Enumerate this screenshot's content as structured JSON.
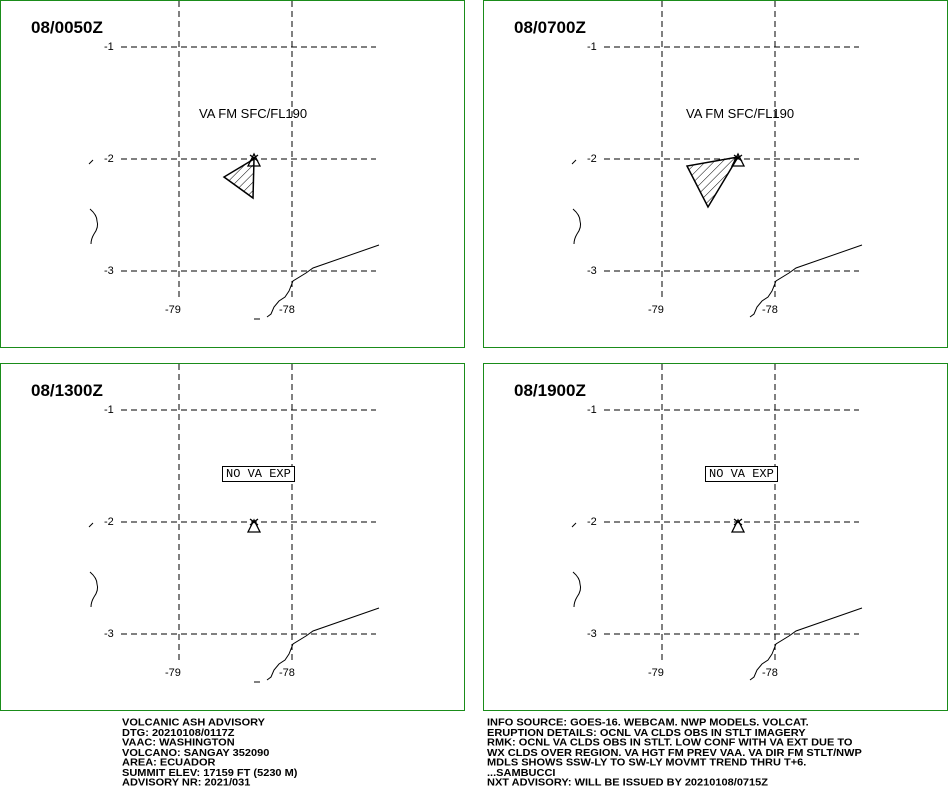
{
  "panels": [
    {
      "time": "08/0050Z",
      "label": "VA FM SFC/FL190",
      "no_va": false
    },
    {
      "time": "08/0700Z",
      "label": "VA FM SFC/FL190",
      "no_va": false
    },
    {
      "time": "08/1300Z",
      "label": "NO VA EXP",
      "no_va": true
    },
    {
      "time": "08/1900Z",
      "label": "NO VA EXP",
      "no_va": true
    }
  ],
  "axes": {
    "lat_labels": [
      "-1",
      "-2",
      "-3"
    ],
    "lon_labels": [
      "-79",
      "-78"
    ]
  },
  "advisory_left": [
    "VOLCANIC ASH ADVISORY",
    "DTG: 20210108/0117Z",
    "VAAC: WASHINGTON",
    "VOLCANO: SANGAY 352090",
    "AREA: ECUADOR",
    "SUMMIT ELEV: 17159 FT (5230 M)",
    "ADVISORY NR: 2021/031"
  ],
  "advisory_right": [
    "INFO SOURCE: GOES-16. WEBCAM. NWP MODELS. VOLCAT.",
    "ERUPTION DETAILS: OCNL VA CLDS OBS IN STLT IMAGERY",
    "RMK: OCNL VA CLDS OBS IN STLT. LOW CONF WITH VA EXT DUE TO",
    "WX CLDS OVER REGION. VA HGT FM PREV VAA. VA DIR FM STLT/NWP",
    "MDLS SHOWS SSW-LY TO SW-LY MOVMT TREND THRU T+6.",
    "...SAMBUCCI",
    "NXT ADVISORY: WILL BE ISSUED BY 20210108/0715Z"
  ],
  "colors": {
    "panel_border": "#1a8c1a",
    "ink": "#000000"
  }
}
